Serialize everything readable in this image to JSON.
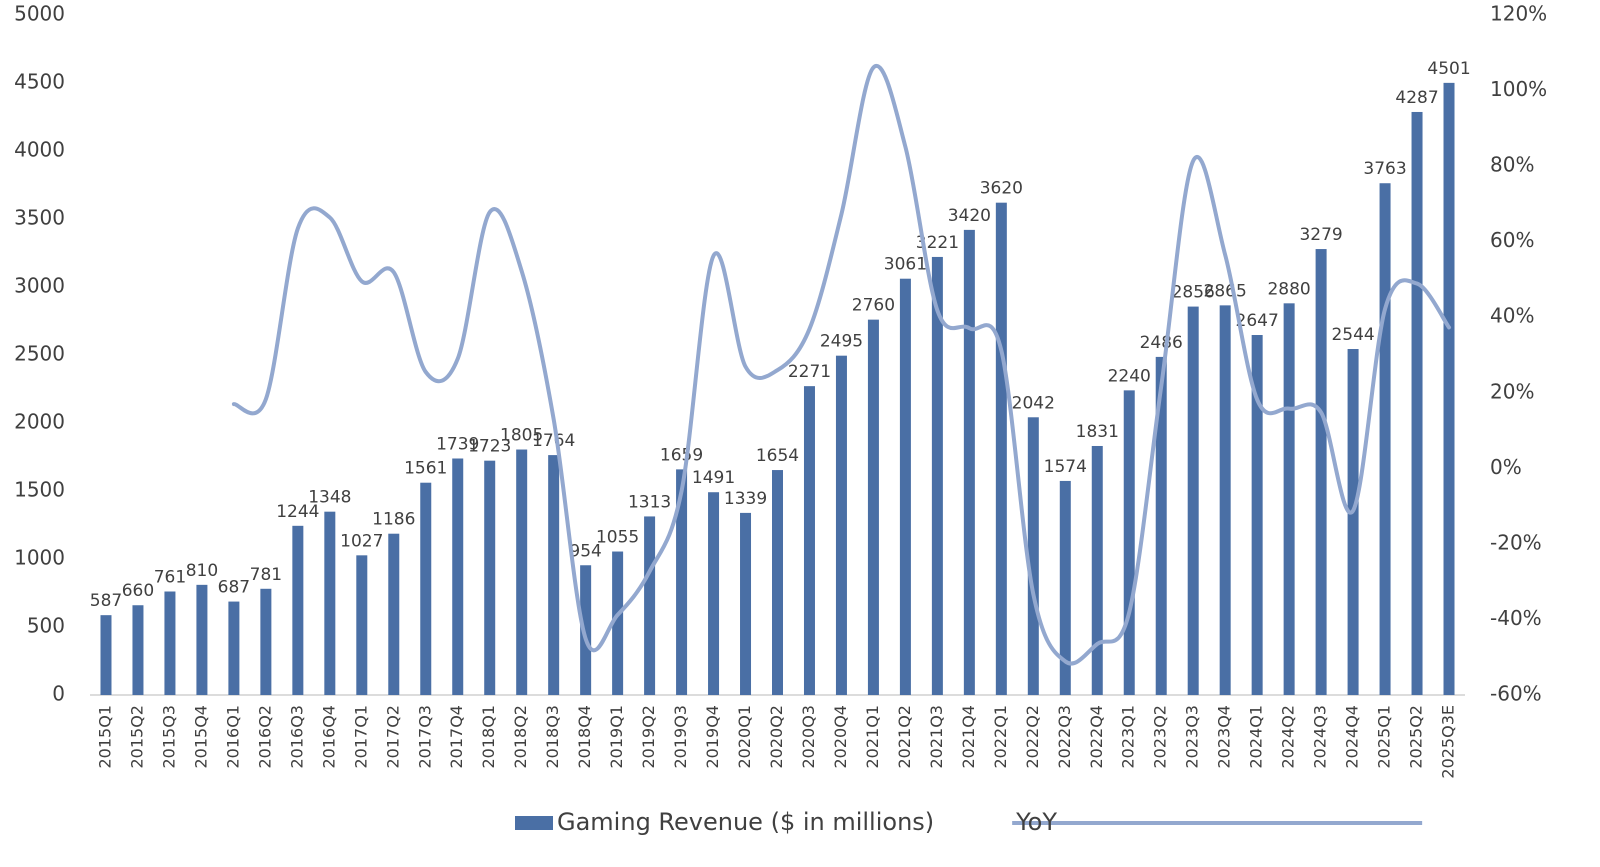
{
  "chart_data": {
    "type": "bar",
    "categories": [
      "2015Q1",
      "2015Q2",
      "2015Q3",
      "2015Q4",
      "2016Q1",
      "2016Q2",
      "2016Q3",
      "2016Q4",
      "2017Q1",
      "2017Q2",
      "2017Q3",
      "2017Q4",
      "2018Q1",
      "2018Q2",
      "2018Q3",
      "2018Q4",
      "2019Q1",
      "2019Q2",
      "2019Q3",
      "2019Q4",
      "2020Q1",
      "2020Q2",
      "2020Q3",
      "2020Q4",
      "2021Q1",
      "2021Q2",
      "2021Q3",
      "2021Q4",
      "2022Q1",
      "2022Q2",
      "2022Q3",
      "2022Q4",
      "2023Q1",
      "2023Q2",
      "2023Q3",
      "2023Q4",
      "2024Q1",
      "2024Q2",
      "2024Q3",
      "2024Q4",
      "2025Q1",
      "2025Q2",
      "2025Q3E"
    ],
    "series": [
      {
        "name": "Gaming Revenue ($ in millions)",
        "type": "bar",
        "color": "#4a6fa5",
        "values": [
          587,
          660,
          761,
          810,
          687,
          781,
          1244,
          1348,
          1027,
          1186,
          1561,
          1739,
          1723,
          1805,
          1764,
          954,
          1055,
          1313,
          1659,
          1491,
          1339,
          1654,
          2271,
          2495,
          2760,
          3061,
          3221,
          3420,
          3620,
          2042,
          1574,
          1831,
          2240,
          2486,
          2856,
          2865,
          2647,
          2880,
          3279,
          2544,
          3763,
          4287,
          4501
        ]
      },
      {
        "name": "YoY",
        "type": "line",
        "color": "#93a8cf",
        "axis": "y2",
        "values": [
          null,
          null,
          null,
          null,
          17,
          18.3,
          63.5,
          66.4,
          49.5,
          51.9,
          25.5,
          29,
          67.8,
          52.2,
          13,
          -45.1,
          -38.8,
          -27.3,
          -6,
          56.3,
          26.9,
          26,
          36.9,
          67.3,
          106.1,
          85.1,
          41.8,
          37.1,
          31.2,
          -33.3,
          -51.1,
          -46.5,
          -38.1,
          21.7,
          81.4,
          56.5,
          18.2,
          15.8,
          14.8,
          -11.2,
          42.2,
          48.9,
          37.3
        ]
      }
    ],
    "ylim": [
      0,
      5000
    ],
    "yticks": [
      0,
      500,
      1000,
      1500,
      2000,
      2500,
      3000,
      3500,
      4000,
      4500,
      5000
    ],
    "y2lim": [
      -60,
      120
    ],
    "y2ticks": [
      {
        "value": -60,
        "label": "-60%"
      },
      {
        "value": -40,
        "label": "-40%"
      },
      {
        "value": -20,
        "label": "-20%"
      },
      {
        "value": 0,
        "label": "0%"
      },
      {
        "value": 20,
        "label": "20%"
      },
      {
        "value": 40,
        "label": "40%"
      },
      {
        "value": 60,
        "label": "60%"
      },
      {
        "value": 80,
        "label": "80%"
      },
      {
        "value": 100,
        "label": "100%"
      },
      {
        "value": 120,
        "label": "120%"
      }
    ],
    "legend": "bottom"
  }
}
